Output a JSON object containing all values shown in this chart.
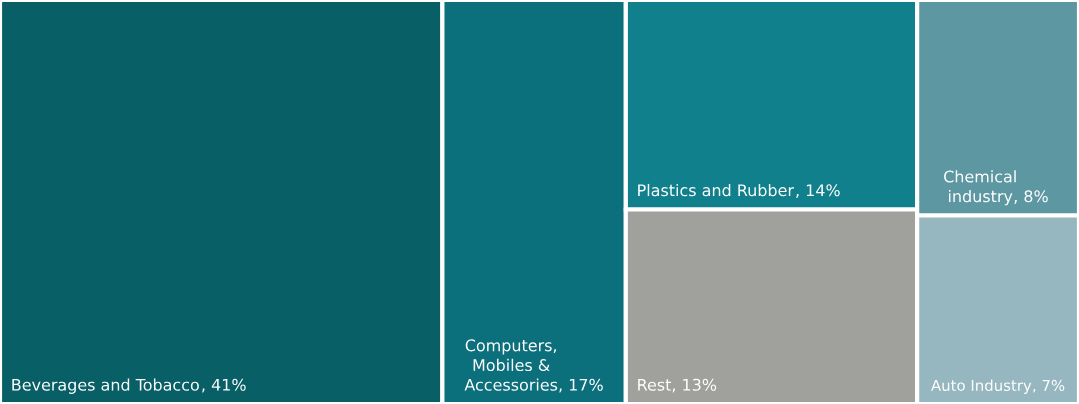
{
  "chart_data": {
    "type": "other",
    "categories": [
      "Beverages and Tobacco",
      "Computers,\nMobiles &\nAccessories",
      "Plastics and Rubber",
      "Rest",
      "Chemical\nindustry",
      "Auto Industry"
    ],
    "values": [
      41,
      17,
      14,
      13,
      8,
      7
    ],
    "value_labels": [
      ", 41%",
      ", 17%",
      ", 14%",
      ", 13%",
      ", 8%",
      ", 7%"
    ],
    "colors": [
      "#085f66",
      "#0b6f7c",
      "#10808c",
      "#a0a09c",
      "#5c97a2",
      "#97b7c0"
    ]
  }
}
